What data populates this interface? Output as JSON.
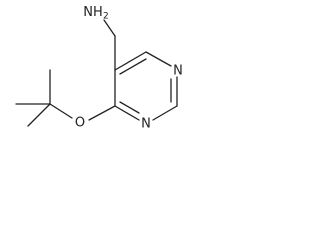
{
  "atoms": {
    "amine": {
      "text": "NH",
      "subscript": "2"
    },
    "n1": "N",
    "n3": "N",
    "oxygen": "O"
  }
}
